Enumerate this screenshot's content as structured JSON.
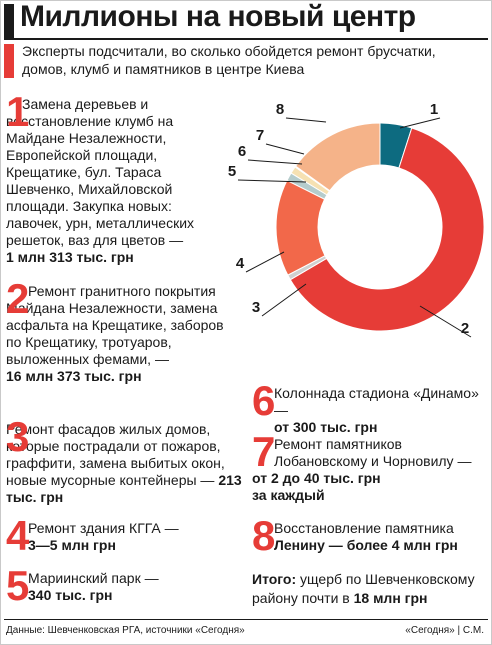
{
  "header": {
    "title": "Миллионы на новый центр",
    "subtitle": "Эксперты подсчитали, во сколько обойдется ремонт брусчатки, домов, клумб и памятников в центре Киева"
  },
  "items": [
    {
      "n": "1",
      "text": "Замена деревьев и восстановление клумб на Майдане Незалежности, Европейской площади, Крещатике, бул. Тараса Шевченко, Михайловской площади. Закупка новых: лавочек, урн, металлических решеток, ваз для цветов —",
      "value": "1 млн 313 тыс. грн"
    },
    {
      "n": "2",
      "text": "Ремонт гранитного покрытия Майдана Незалежности, замена асфальта на Крещатике, заборов по Крещатику, тротуаров, выложенных фемами, —",
      "value": "16 млн 373 тыс. грн"
    },
    {
      "n": "3",
      "text": "Ремонт фасадов жилых домов, которые пострадали от пожаров, граффити, замена выбитых окон, новые мусорные контейнеры —",
      "value": "213 тыс. грн"
    },
    {
      "n": "4",
      "text": "Ремонт здания КГГА —",
      "value": "3—5 млн грн"
    },
    {
      "n": "5",
      "text": "Мариинский парк —",
      "value": "340 тыс. грн"
    },
    {
      "n": "6",
      "text": "Колоннада стадиона «Динамо» —",
      "value": "от 300 тыс. грн"
    },
    {
      "n": "7",
      "text": "Ремонт памятников Лобановскому и Чорновилу —",
      "value": "от 2 до 40 тыс. грн",
      "value2": "за каждый"
    },
    {
      "n": "8",
      "text": "Восстановление памятника",
      "value": "Ленину — более 4 млн грн"
    }
  ],
  "total": {
    "label": "Итого:",
    "text": "ущерб по Шевченковскому району почти в",
    "value": "18 млн грн"
  },
  "footer": {
    "source": "Данные: Шевченковская РГА, источники «Сегодня»",
    "credit": "«Сегодня» | С.М."
  },
  "chart_data": {
    "type": "pie",
    "subtype": "donut",
    "unit": "тыс. грн",
    "categories": [
      "1",
      "2",
      "3",
      "4",
      "5",
      "6",
      "7",
      "8"
    ],
    "values": [
      1313,
      16373,
      213,
      4000,
      340,
      300,
      40,
      4000
    ],
    "colors": [
      "#0d6b80",
      "#e63c37",
      "#d0d0d0",
      "#f2684a",
      "#b5cccc",
      "#f6e1b2",
      "#0d6b80",
      "#f5b389"
    ]
  }
}
